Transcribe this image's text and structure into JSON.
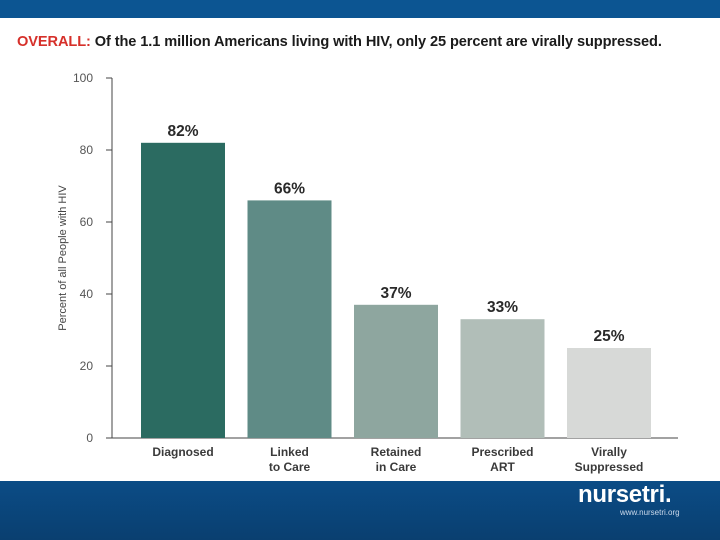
{
  "header": {
    "title_lead": "OVERALL:",
    "title_rest": " Of the 1.1 million Americans living with HIV, only 25 percent are virally suppressed."
  },
  "chart_data": {
    "type": "bar",
    "categories": [
      [
        "Diagnosed"
      ],
      [
        "Linked",
        "to Care"
      ],
      [
        "Retained",
        "in Care"
      ],
      [
        "Prescribed",
        "ART"
      ],
      [
        "Virally",
        "Suppressed"
      ]
    ],
    "values": [
      82,
      66,
      37,
      33,
      25
    ],
    "data_labels": [
      "82%",
      "66%",
      "37%",
      "33%",
      "25%"
    ],
    "bar_colors": [
      "#2b6b61",
      "#5f8b86",
      "#8ea69f",
      "#b1beb8",
      "#d7d9d7"
    ],
    "ylabel": "Percent of all People with HIV",
    "ylim": [
      0,
      100
    ],
    "yticks": [
      0,
      20,
      40,
      60,
      80,
      100
    ],
    "grid": false
  },
  "footer": {
    "brand": "nursetri",
    "brand_dot": ".",
    "url": "www.nursetri.org"
  }
}
